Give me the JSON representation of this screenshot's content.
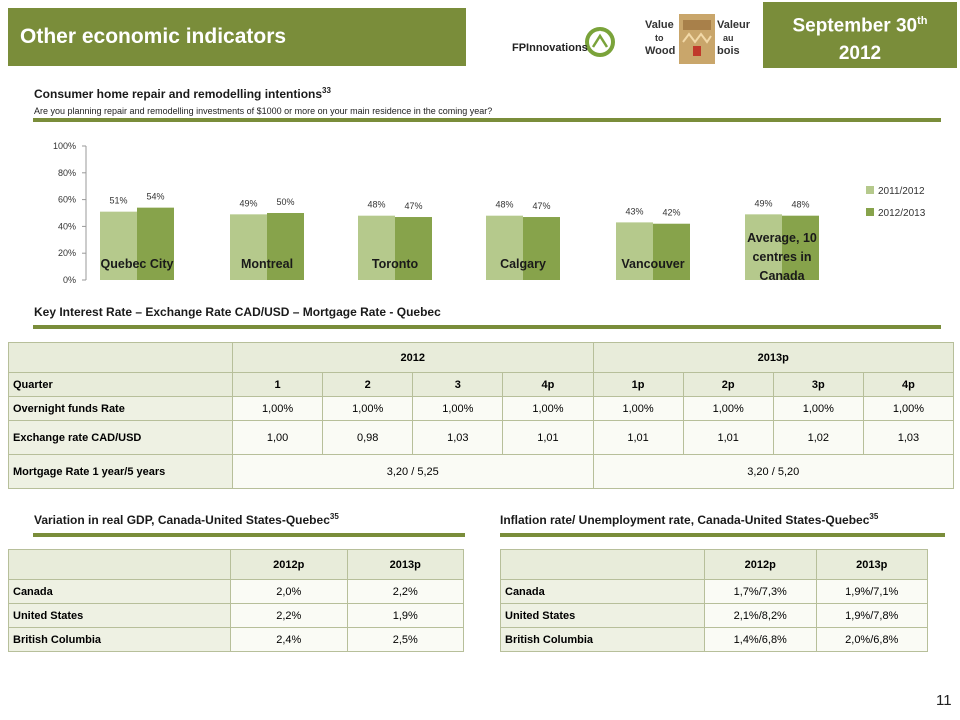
{
  "header": {
    "title": "Other economic indicators",
    "date_line1": "September 30",
    "date_sup": "th",
    "date_line2": "2012"
  },
  "logos": {
    "fpinnovations": "FPInnovations",
    "vtw_left_top": "Value",
    "vtw_left_mid": "to",
    "vtw_left_bot": "Wood",
    "vtw_right_top": "Valeur",
    "vtw_right_mid": "au",
    "vtw_right_bot": "bois"
  },
  "colors": {
    "brand_green": "#7a8d3a",
    "series_2011": "#b5c98c",
    "series_2012": "#87a34b"
  },
  "chart_section": {
    "title": "Consumer home repair and remodelling intentions",
    "title_sup": "33",
    "subtitle": "Are you planning repair and remodelling investments of $1000 or more on your main residence in the coming year?"
  },
  "chart_data": {
    "type": "bar",
    "categories": [
      "Quebec City",
      "Montreal",
      "Toronto",
      "Calgary",
      "Vancouver",
      "Average, 10 centres in Canada"
    ],
    "series": [
      {
        "name": "2011/2012",
        "values": [
          51,
          49,
          48,
          48,
          43,
          49
        ],
        "labels": [
          "51%",
          "49%",
          "48%",
          "48%",
          "43%",
          "49%"
        ]
      },
      {
        "name": "2012/2013",
        "values": [
          54,
          50,
          47,
          47,
          42,
          48
        ],
        "labels": [
          "54%",
          "50%",
          "47%",
          "47%",
          "42%",
          "48%"
        ]
      }
    ],
    "ylim": [
      0,
      100
    ],
    "yticks": [
      "0%",
      "20%",
      "40%",
      "60%",
      "80%",
      "100%"
    ],
    "legend_position": "right",
    "grid": false
  },
  "rates_section": {
    "title": "Key Interest Rate – Exchange Rate CAD/USD – Mortgage Rate - Quebec",
    "year_2012": "2012",
    "year_2013": "2013p",
    "quarter_label": "Quarter",
    "quarters": [
      "1",
      "2",
      "3",
      "4p",
      "1p",
      "2p",
      "3p",
      "4p"
    ],
    "rows": [
      {
        "label": "Overnight funds Rate",
        "values": [
          "1,00%",
          "1,00%",
          "1,00%",
          "1,00%",
          "1,00%",
          "1,00%",
          "1,00%",
          "1,00%"
        ]
      },
      {
        "label": "Exchange rate CAD/USD",
        "values": [
          "1,00",
          "0,98",
          "1,03",
          "1,01",
          "1,01",
          "1,01",
          "1,02",
          "1,03"
        ]
      }
    ],
    "mortgage_label": "Mortgage Rate 1 year/5 years",
    "mortgage_2012": "3,20 / 5,25",
    "mortgage_2013": "3,20 / 5,20"
  },
  "gdp_section": {
    "title": "Variation in real GDP, Canada-United States-Quebec",
    "title_sup": "35",
    "headers": [
      "2012p",
      "2013p"
    ],
    "rows": [
      {
        "label": "Canada",
        "values": [
          "2,0%",
          "2,2%"
        ]
      },
      {
        "label": "United States",
        "values": [
          "2,2%",
          "1,9%"
        ]
      },
      {
        "label": "British Columbia",
        "values": [
          "2,4%",
          "2,5%"
        ]
      }
    ]
  },
  "inflation_section": {
    "title": "Inflation rate/ Unemployment rate, Canada-United States-Quebec",
    "title_sup": "35",
    "headers": [
      "2012p",
      "2013p"
    ],
    "rows": [
      {
        "label": "Canada",
        "values": [
          "1,7%/7,3%",
          "1,9%/7,1%"
        ]
      },
      {
        "label": "United States",
        "values": [
          "2,1%/8,2%",
          "1,9%/7,8%"
        ]
      },
      {
        "label": "British Columbia",
        "values": [
          "1,4%/6,8%",
          "2,0%/6,8%"
        ]
      }
    ]
  },
  "page_number": "11"
}
